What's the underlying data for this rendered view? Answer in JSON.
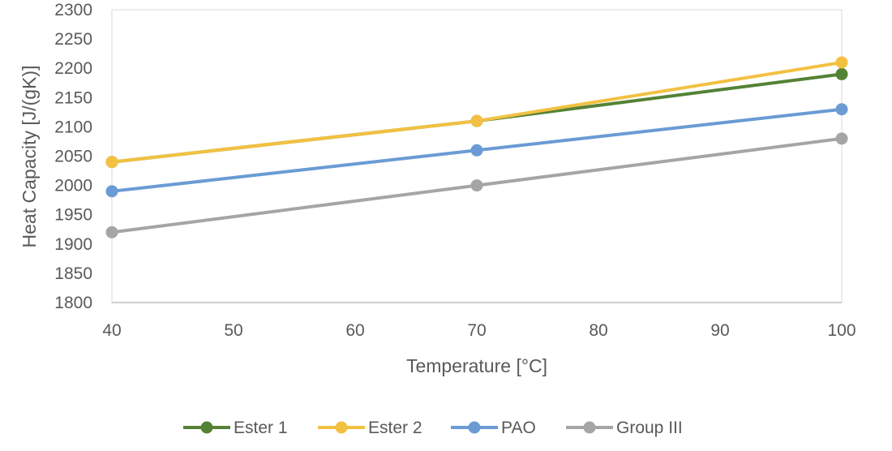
{
  "chart_data": {
    "type": "line",
    "title": "",
    "xlabel": "Temperature [°C]",
    "ylabel": "Heat Capacity [J/(gK)]",
    "xlim": [
      40,
      100
    ],
    "ylim": [
      1800,
      2300
    ],
    "x_ticks": [
      40,
      50,
      60,
      70,
      80,
      90,
      100
    ],
    "y_ticks": [
      1800,
      1850,
      1900,
      1950,
      2000,
      2050,
      2100,
      2150,
      2200,
      2250,
      2300
    ],
    "x": [
      40,
      70,
      100
    ],
    "series": [
      {
        "name": "Ester 1",
        "color": "#548235",
        "values": [
          2040,
          2110,
          2190
        ]
      },
      {
        "name": "Ester 2",
        "color": "#F2C142",
        "values": [
          2040,
          2110,
          2210
        ]
      },
      {
        "name": "PAO",
        "color": "#6A9BD4",
        "values": [
          1990,
          2060,
          2130
        ]
      },
      {
        "name": "Group III",
        "color": "#A5A5A5",
        "values": [
          1920,
          2000,
          2080
        ]
      }
    ],
    "grid": false,
    "legend_position": "bottom",
    "plot_border_color": "#D9D9D9",
    "axis_color": "#BFBFBF"
  }
}
